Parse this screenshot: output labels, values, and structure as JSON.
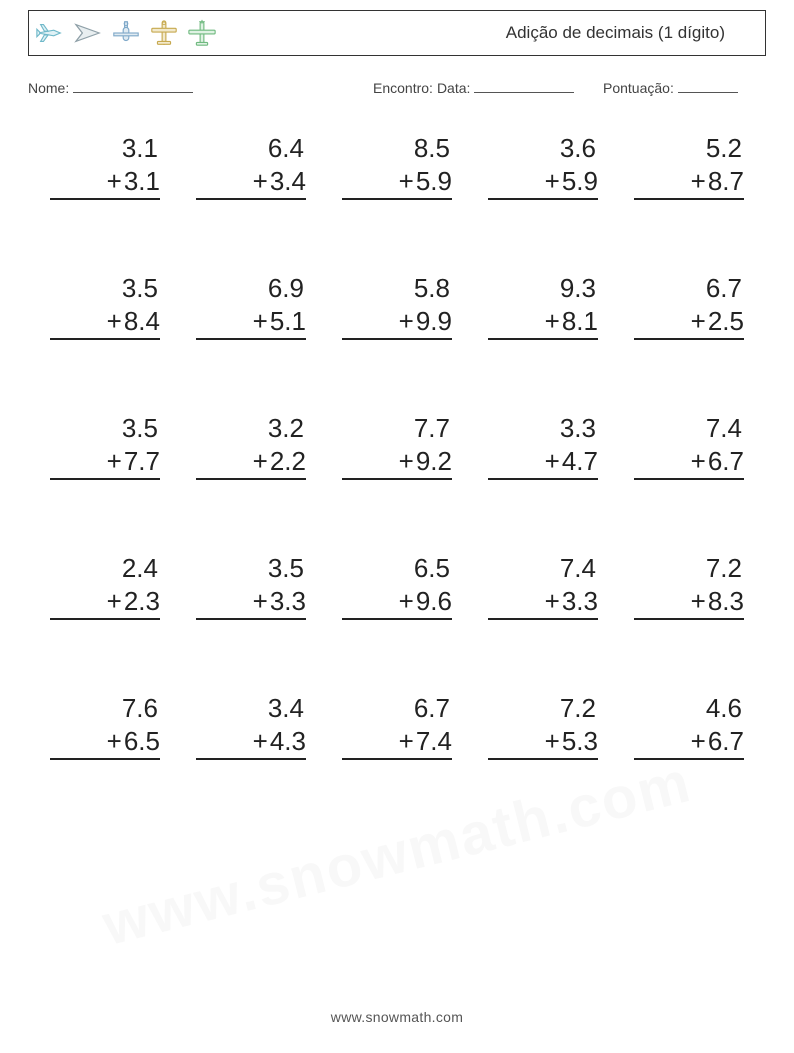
{
  "header": {
    "title": "Adição de decimais (1 dígito)",
    "icons": [
      {
        "name": "plane1",
        "stroke": "#6fb8c9",
        "fill": "#dff1f5"
      },
      {
        "name": "plane2",
        "stroke": "#8fa0a8",
        "fill": "#e8eef0"
      },
      {
        "name": "plane3",
        "stroke": "#7fa8c9",
        "fill": "#e0ebf2"
      },
      {
        "name": "plane4",
        "stroke": "#c7a94f",
        "fill": "#f2e9cc"
      },
      {
        "name": "plane5",
        "stroke": "#6fb97f",
        "fill": "#dff2e3"
      }
    ]
  },
  "labels": {
    "name": "Nome:",
    "encounter": "Encontro:",
    "date": "Data:",
    "score": "Pontuação:"
  },
  "worksheet": {
    "type": "addition-vertical",
    "columns": 5,
    "rows": 5,
    "operator": "+",
    "font_size_pt": 20,
    "text_color": "#222222",
    "underline_color": "#222222",
    "problems": [
      {
        "a": "3.1",
        "b": "3.1"
      },
      {
        "a": "6.4",
        "b": "3.4"
      },
      {
        "a": "8.5",
        "b": "5.9"
      },
      {
        "a": "3.6",
        "b": "5.9"
      },
      {
        "a": "5.2",
        "b": "8.7"
      },
      {
        "a": "3.5",
        "b": "8.4"
      },
      {
        "a": "6.9",
        "b": "5.1"
      },
      {
        "a": "5.8",
        "b": "9.9"
      },
      {
        "a": "9.3",
        "b": "8.1"
      },
      {
        "a": "6.7",
        "b": "2.5"
      },
      {
        "a": "3.5",
        "b": "7.7"
      },
      {
        "a": "3.2",
        "b": "2.2"
      },
      {
        "a": "7.7",
        "b": "9.2"
      },
      {
        "a": "3.3",
        "b": "4.7"
      },
      {
        "a": "7.4",
        "b": "6.7"
      },
      {
        "a": "2.4",
        "b": "2.3"
      },
      {
        "a": "3.5",
        "b": "3.3"
      },
      {
        "a": "6.5",
        "b": "9.6"
      },
      {
        "a": "7.4",
        "b": "3.3"
      },
      {
        "a": "7.2",
        "b": "8.3"
      },
      {
        "a": "7.6",
        "b": "6.5"
      },
      {
        "a": "3.4",
        "b": "4.3"
      },
      {
        "a": "6.7",
        "b": "7.4"
      },
      {
        "a": "7.2",
        "b": "5.3"
      },
      {
        "a": "4.6",
        "b": "6.7"
      }
    ]
  },
  "footer": {
    "url": "www.snowmath.com"
  },
  "colors": {
    "page_bg": "#ffffff",
    "border": "#333333",
    "text": "#333333"
  }
}
